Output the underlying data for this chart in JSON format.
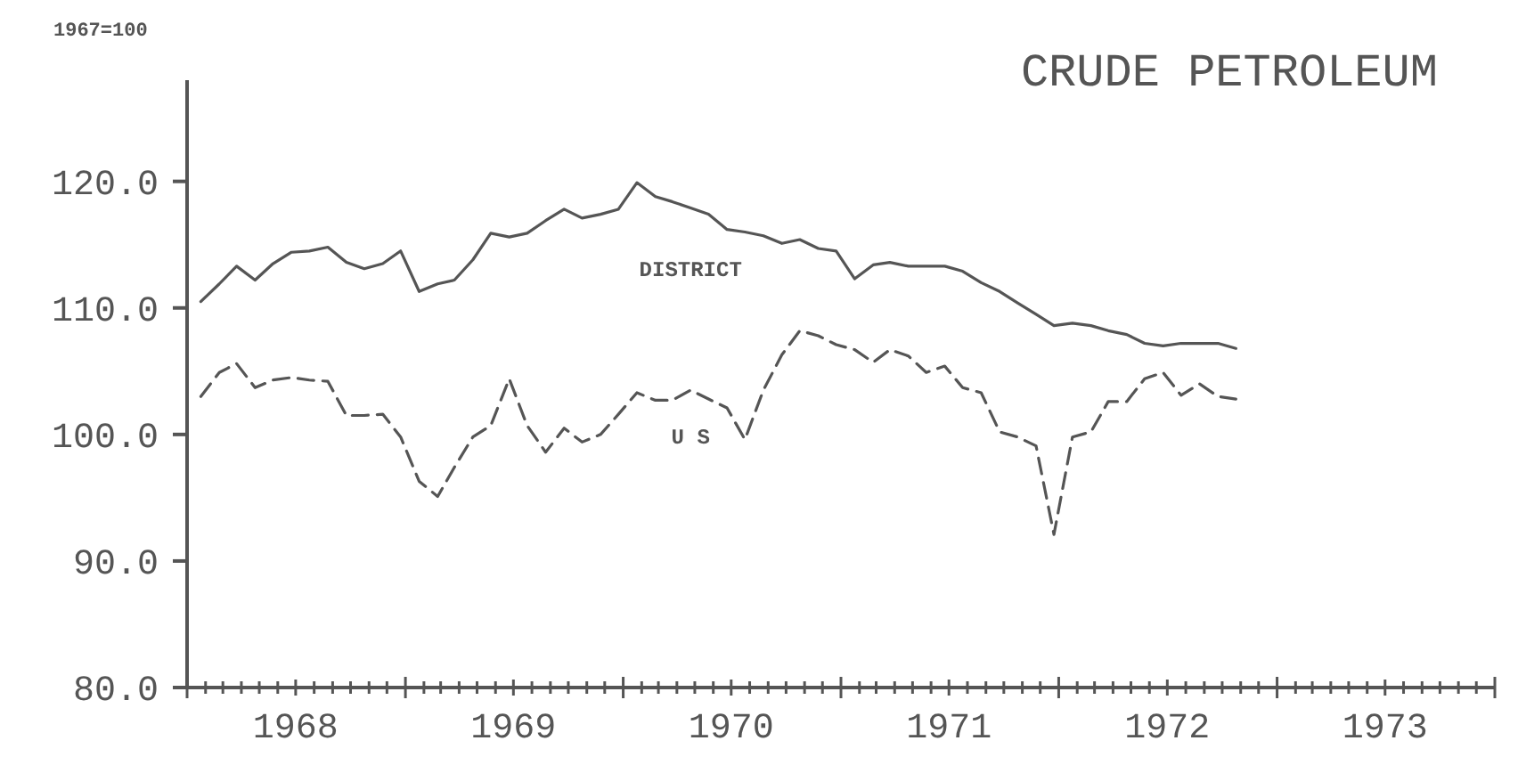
{
  "chart_data": {
    "type": "line",
    "title": "CRUDE PETROLEUM",
    "ylabel": "1967=100",
    "x": [
      "1968-01-24",
      "1968-02-24",
      "1968-03-24",
      "1968-04-24",
      "1968-05-24",
      "1968-06-24",
      "1968-07-24",
      "1968-08-24",
      "1968-09-24",
      "1968-10-24",
      "1968-11-24",
      "1968-12-24",
      "1969-01-24",
      "1969-02-24",
      "1969-03-24",
      "1969-04-24",
      "1969-05-24",
      "1969-06-24",
      "1969-07-24",
      "1969-08-24",
      "1969-09-24",
      "1969-10-24",
      "1969-11-24",
      "1969-12-24",
      "1970-01-24",
      "1970-02-24",
      "1970-03-24",
      "1970-04-24",
      "1970-05-24",
      "1970-06-24",
      "1970-07-24",
      "1970-08-24",
      "1970-09-24",
      "1970-10-24",
      "1970-11-24",
      "1970-12-24",
      "1971-01-24",
      "1971-02-24",
      "1971-03-24",
      "1971-04-24",
      "1971-05-24",
      "1971-06-24",
      "1971-07-24",
      "1971-08-24",
      "1971-09-24",
      "1971-10-24",
      "1971-11-24",
      "1971-12-24",
      "1972-01-24",
      "1972-02-24",
      "1972-03-24",
      "1972-04-24",
      "1972-05-24",
      "1972-06-24",
      "1972-07-24",
      "1972-08-24",
      "1972-09-24",
      "1972-10-24"
    ],
    "series": [
      {
        "name": "DISTRICT",
        "color": "#555555",
        "line_style": "solid",
        "values": [
          110.5,
          111.9,
          113.3,
          112.2,
          113.5,
          114.4,
          114.5,
          114.8,
          113.6,
          113.1,
          113.5,
          114.5,
          111.3,
          111.9,
          112.2,
          113.8,
          115.9,
          115.6,
          115.9,
          116.9,
          117.8,
          117.1,
          117.4,
          117.8,
          119.9,
          118.8,
          118.4,
          117.9,
          117.4,
          116.2,
          116.0,
          115.7,
          115.1,
          115.4,
          114.7,
          114.5,
          112.3,
          113.4,
          113.6,
          113.3,
          113.3,
          113.3,
          112.9,
          112.0,
          111.3,
          110.4,
          109.5,
          108.6,
          108.8,
          108.6,
          108.2,
          107.9,
          107.2,
          107.0,
          107.2,
          107.2,
          107.2,
          106.8
        ]
      },
      {
        "name": "U S",
        "color": "#555555",
        "line_style": "dashed",
        "values": [
          103.0,
          104.9,
          105.6,
          103.7,
          104.3,
          104.5,
          104.3,
          104.2,
          101.5,
          101.5,
          101.6,
          99.8,
          96.3,
          95.1,
          97.4,
          99.8,
          100.7,
          104.4,
          100.7,
          98.6,
          100.5,
          99.4,
          100.0,
          101.6,
          103.3,
          102.7,
          102.7,
          103.5,
          102.8,
          102.1,
          99.6,
          103.5,
          106.3,
          108.2,
          107.8,
          107.1,
          106.7,
          105.7,
          106.7,
          106.2,
          104.9,
          105.4,
          103.7,
          103.3,
          100.2,
          99.8,
          99.1,
          92.1,
          99.8,
          100.2,
          102.6,
          102.6,
          104.4,
          104.9,
          103.1,
          104.0,
          103.0,
          102.8
        ]
      }
    ],
    "xlim": [
      "1968-01-01",
      "1974-01-01"
    ],
    "xticks": [
      {
        "value": "1968-01-01",
        "label": null
      },
      {
        "value": "1968-02-01",
        "label": null
      },
      {
        "value": "1968-03-01",
        "label": null
      },
      {
        "value": "1968-04-01",
        "label": null
      },
      {
        "value": "1968-05-01",
        "label": null
      },
      {
        "value": "1968-06-01",
        "label": null
      },
      {
        "value": "1968-07-01",
        "label": "1968"
      },
      {
        "value": "1968-08-01",
        "label": null
      },
      {
        "value": "1968-09-01",
        "label": null
      },
      {
        "value": "1968-10-01",
        "label": null
      },
      {
        "value": "1968-11-01",
        "label": null
      },
      {
        "value": "1968-12-01",
        "label": null
      },
      {
        "value": "1969-01-01",
        "label": null
      },
      {
        "value": "1969-02-01",
        "label": null
      },
      {
        "value": "1969-03-01",
        "label": null
      },
      {
        "value": "1969-04-01",
        "label": null
      },
      {
        "value": "1969-05-01",
        "label": null
      },
      {
        "value": "1969-06-01",
        "label": null
      },
      {
        "value": "1969-07-01",
        "label": "1969"
      },
      {
        "value": "1969-08-01",
        "label": null
      },
      {
        "value": "1969-09-01",
        "label": null
      },
      {
        "value": "1969-10-01",
        "label": null
      },
      {
        "value": "1969-11-01",
        "label": null
      },
      {
        "value": "1969-12-01",
        "label": null
      },
      {
        "value": "1970-01-01",
        "label": null
      },
      {
        "value": "1970-02-01",
        "label": null
      },
      {
        "value": "1970-03-01",
        "label": null
      },
      {
        "value": "1970-04-01",
        "label": null
      },
      {
        "value": "1970-05-01",
        "label": null
      },
      {
        "value": "1970-06-01",
        "label": null
      },
      {
        "value": "1970-07-01",
        "label": "1970"
      },
      {
        "value": "1970-08-01",
        "label": null
      },
      {
        "value": "1970-09-01",
        "label": null
      },
      {
        "value": "1970-10-01",
        "label": null
      },
      {
        "value": "1970-11-01",
        "label": null
      },
      {
        "value": "1970-12-01",
        "label": null
      },
      {
        "value": "1971-01-01",
        "label": null
      },
      {
        "value": "1971-02-01",
        "label": null
      },
      {
        "value": "1971-03-01",
        "label": null
      },
      {
        "value": "1971-04-01",
        "label": null
      },
      {
        "value": "1971-05-01",
        "label": null
      },
      {
        "value": "1971-06-01",
        "label": null
      },
      {
        "value": "1971-07-01",
        "label": "1971"
      },
      {
        "value": "1971-08-01",
        "label": null
      },
      {
        "value": "1971-09-01",
        "label": null
      },
      {
        "value": "1971-10-01",
        "label": null
      },
      {
        "value": "1971-11-01",
        "label": null
      },
      {
        "value": "1971-12-01",
        "label": null
      },
      {
        "value": "1972-01-01",
        "label": null
      },
      {
        "value": "1972-02-01",
        "label": null
      },
      {
        "value": "1972-03-01",
        "label": null
      },
      {
        "value": "1972-04-01",
        "label": null
      },
      {
        "value": "1972-05-01",
        "label": null
      },
      {
        "value": "1972-06-01",
        "label": null
      },
      {
        "value": "1972-07-01",
        "label": "1972"
      },
      {
        "value": "1972-08-01",
        "label": null
      },
      {
        "value": "1972-09-01",
        "label": null
      },
      {
        "value": "1972-10-01",
        "label": null
      },
      {
        "value": "1972-11-01",
        "label": null
      },
      {
        "value": "1972-12-01",
        "label": null
      },
      {
        "value": "1973-01-01",
        "label": null
      },
      {
        "value": "1973-02-01",
        "label": null
      },
      {
        "value": "1973-03-01",
        "label": null
      },
      {
        "value": "1973-04-01",
        "label": null
      },
      {
        "value": "1973-05-01",
        "label": null
      },
      {
        "value": "1973-06-01",
        "label": null
      },
      {
        "value": "1973-07-01",
        "label": "1973"
      },
      {
        "value": "1973-08-01",
        "label": null
      },
      {
        "value": "1973-09-01",
        "label": null
      },
      {
        "value": "1973-10-01",
        "label": null
      },
      {
        "value": "1973-11-01",
        "label": null
      },
      {
        "value": "1973-12-01",
        "label": null
      },
      {
        "value": "1974-01-01",
        "label": null
      }
    ],
    "ylim": [
      80,
      128
    ],
    "yticks": [
      {
        "value": 80,
        "label": "80.0"
      },
      {
        "value": 90,
        "label": "90.0"
      },
      {
        "value": 100,
        "label": "100.0"
      },
      {
        "value": 110,
        "label": "110.0"
      },
      {
        "value": 120,
        "label": "120.0"
      }
    ],
    "grid": false,
    "legend": false,
    "marker": "none"
  }
}
